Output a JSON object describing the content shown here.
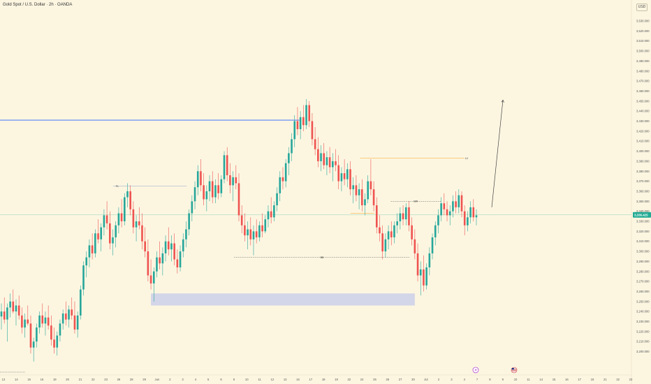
{
  "title": "Gold Spot / U.S. Dollar · 2h · OANDA",
  "currency": "USD",
  "chart_data": {
    "type": "candlestick",
    "symbol": "Gold Spot / U.S. Dollar",
    "interval": "2h",
    "source": "OANDA",
    "y_axis_ticks": [
      3530,
      3520,
      3510,
      3500,
      3490,
      3480,
      3470,
      3460,
      3450,
      3440,
      3430,
      3420,
      3410,
      3400,
      3390,
      3380,
      3370,
      3360,
      3350,
      3340,
      3330,
      3320,
      3310,
      3300,
      3290,
      3280,
      3270,
      3260,
      3250,
      3240,
      3230,
      3220,
      3210,
      3200
    ],
    "y_axis_ticks_display": [
      "3,530.000",
      "3,520.000",
      "3,510.000",
      "3,500.000",
      "3,490.000",
      "3,480.000",
      "3,470.000",
      "3,460.000",
      "3,450.000",
      "3,440.000",
      "3,430.000",
      "3,420.000",
      "3,410.000",
      "3,400.000",
      "3,390.000",
      "3,380.000",
      "3,370.000",
      "3,360.000",
      "3,350.000",
      "3,340.000",
      "3,330.000",
      "3,320.000",
      "3,310.000",
      "3,300.000",
      "3,290.000",
      "3,280.000",
      "3,270.000",
      "3,260.000",
      "3,250.000",
      "3,240.000",
      "3,230.000",
      "3,220.000",
      "3,210.000",
      "3,200.000"
    ],
    "current_price": 3336.425,
    "current_price_display": "3,336.425",
    "x_axis_labels": [
      "12",
      "14",
      "15",
      "16",
      "19",
      "20",
      "21",
      "22",
      "23",
      "26",
      "28",
      "29",
      "Jun",
      "2",
      "3",
      "4",
      "5",
      "6",
      "9",
      "10",
      "11",
      "12",
      "13",
      "16",
      "17",
      "18",
      "19",
      "22",
      "24",
      "25",
      "26",
      "27",
      "30",
      "Jul",
      "2",
      "3",
      "4",
      "7",
      "8",
      "9",
      "10",
      "11",
      "14",
      "15",
      "16",
      "17",
      "18",
      "21",
      "22",
      "23"
    ],
    "ohlc": [
      {
        "o": 3235,
        "h": 3248,
        "l": 3222,
        "c": 3240
      },
      {
        "o": 3240,
        "h": 3254,
        "l": 3228,
        "c": 3232
      },
      {
        "o": 3232,
        "h": 3248,
        "l": 3210,
        "c": 3244
      },
      {
        "o": 3244,
        "h": 3258,
        "l": 3234,
        "c": 3250
      },
      {
        "o": 3250,
        "h": 3262,
        "l": 3238,
        "c": 3240
      },
      {
        "o": 3240,
        "h": 3252,
        "l": 3226,
        "c": 3246
      },
      {
        "o": 3246,
        "h": 3256,
        "l": 3232,
        "c": 3236
      },
      {
        "o": 3236,
        "h": 3244,
        "l": 3218,
        "c": 3224
      },
      {
        "o": 3224,
        "h": 3238,
        "l": 3214,
        "c": 3232
      },
      {
        "o": 3232,
        "h": 3246,
        "l": 3226,
        "c": 3228
      },
      {
        "o": 3228,
        "h": 3236,
        "l": 3198,
        "c": 3204
      },
      {
        "o": 3204,
        "h": 3214,
        "l": 3190,
        "c": 3210
      },
      {
        "o": 3210,
        "h": 3228,
        "l": 3204,
        "c": 3224
      },
      {
        "o": 3224,
        "h": 3240,
        "l": 3218,
        "c": 3236
      },
      {
        "o": 3236,
        "h": 3248,
        "l": 3224,
        "c": 3228
      },
      {
        "o": 3228,
        "h": 3240,
        "l": 3216,
        "c": 3234
      },
      {
        "o": 3234,
        "h": 3246,
        "l": 3222,
        "c": 3226
      },
      {
        "o": 3226,
        "h": 3236,
        "l": 3206,
        "c": 3212
      },
      {
        "o": 3212,
        "h": 3224,
        "l": 3198,
        "c": 3204
      },
      {
        "o": 3204,
        "h": 3220,
        "l": 3196,
        "c": 3216
      },
      {
        "o": 3216,
        "h": 3232,
        "l": 3210,
        "c": 3228
      },
      {
        "o": 3228,
        "h": 3242,
        "l": 3222,
        "c": 3238
      },
      {
        "o": 3238,
        "h": 3250,
        "l": 3226,
        "c": 3232
      },
      {
        "o": 3232,
        "h": 3246,
        "l": 3224,
        "c": 3242
      },
      {
        "o": 3242,
        "h": 3254,
        "l": 3232,
        "c": 3236
      },
      {
        "o": 3236,
        "h": 3250,
        "l": 3218,
        "c": 3222
      },
      {
        "o": 3222,
        "h": 3240,
        "l": 3214,
        "c": 3236
      },
      {
        "o": 3236,
        "h": 3266,
        "l": 3232,
        "c": 3262
      },
      {
        "o": 3262,
        "h": 3290,
        "l": 3256,
        "c": 3286
      },
      {
        "o": 3286,
        "h": 3300,
        "l": 3274,
        "c": 3294
      },
      {
        "o": 3294,
        "h": 3312,
        "l": 3284,
        "c": 3306
      },
      {
        "o": 3306,
        "h": 3318,
        "l": 3292,
        "c": 3298
      },
      {
        "o": 3298,
        "h": 3322,
        "l": 3294,
        "c": 3318
      },
      {
        "o": 3318,
        "h": 3332,
        "l": 3308,
        "c": 3312
      },
      {
        "o": 3312,
        "h": 3328,
        "l": 3300,
        "c": 3324
      },
      {
        "o": 3324,
        "h": 3342,
        "l": 3316,
        "c": 3336
      },
      {
        "o": 3336,
        "h": 3350,
        "l": 3322,
        "c": 3328
      },
      {
        "o": 3328,
        "h": 3340,
        "l": 3302,
        "c": 3308
      },
      {
        "o": 3308,
        "h": 3322,
        "l": 3296,
        "c": 3314
      },
      {
        "o": 3314,
        "h": 3330,
        "l": 3304,
        "c": 3326
      },
      {
        "o": 3326,
        "h": 3344,
        "l": 3318,
        "c": 3338
      },
      {
        "o": 3338,
        "h": 3352,
        "l": 3324,
        "c": 3330
      },
      {
        "o": 3330,
        "h": 3358,
        "l": 3326,
        "c": 3354
      },
      {
        "o": 3354,
        "h": 3368,
        "l": 3344,
        "c": 3360
      },
      {
        "o": 3360,
        "h": 3366,
        "l": 3336,
        "c": 3342
      },
      {
        "o": 3342,
        "h": 3350,
        "l": 3318,
        "c": 3324
      },
      {
        "o": 3324,
        "h": 3336,
        "l": 3310,
        "c": 3330
      },
      {
        "o": 3330,
        "h": 3344,
        "l": 3322,
        "c": 3326
      },
      {
        "o": 3326,
        "h": 3338,
        "l": 3302,
        "c": 3310
      },
      {
        "o": 3310,
        "h": 3324,
        "l": 3294,
        "c": 3300
      },
      {
        "o": 3300,
        "h": 3312,
        "l": 3270,
        "c": 3276
      },
      {
        "o": 3276,
        "h": 3292,
        "l": 3262,
        "c": 3268
      },
      {
        "o": 3268,
        "h": 3284,
        "l": 3250,
        "c": 3280
      },
      {
        "o": 3280,
        "h": 3300,
        "l": 3274,
        "c": 3294
      },
      {
        "o": 3294,
        "h": 3310,
        "l": 3282,
        "c": 3288
      },
      {
        "o": 3288,
        "h": 3304,
        "l": 3276,
        "c": 3298
      },
      {
        "o": 3298,
        "h": 3316,
        "l": 3290,
        "c": 3310
      },
      {
        "o": 3310,
        "h": 3324,
        "l": 3296,
        "c": 3302
      },
      {
        "o": 3302,
        "h": 3316,
        "l": 3290,
        "c": 3308
      },
      {
        "o": 3308,
        "h": 3318,
        "l": 3286,
        "c": 3292
      },
      {
        "o": 3292,
        "h": 3302,
        "l": 3278,
        "c": 3284
      },
      {
        "o": 3284,
        "h": 3306,
        "l": 3280,
        "c": 3300
      },
      {
        "o": 3300,
        "h": 3318,
        "l": 3294,
        "c": 3312
      },
      {
        "o": 3312,
        "h": 3330,
        "l": 3304,
        "c": 3322
      },
      {
        "o": 3322,
        "h": 3342,
        "l": 3316,
        "c": 3338
      },
      {
        "o": 3338,
        "h": 3356,
        "l": 3330,
        "c": 3350
      },
      {
        "o": 3350,
        "h": 3370,
        "l": 3342,
        "c": 3364
      },
      {
        "o": 3364,
        "h": 3386,
        "l": 3356,
        "c": 3380
      },
      {
        "o": 3380,
        "h": 3392,
        "l": 3360,
        "c": 3366
      },
      {
        "o": 3366,
        "h": 3378,
        "l": 3346,
        "c": 3352
      },
      {
        "o": 3352,
        "h": 3366,
        "l": 3340,
        "c": 3360
      },
      {
        "o": 3360,
        "h": 3376,
        "l": 3350,
        "c": 3370
      },
      {
        "o": 3370,
        "h": 3380,
        "l": 3348,
        "c": 3354
      },
      {
        "o": 3354,
        "h": 3372,
        "l": 3348,
        "c": 3366
      },
      {
        "o": 3366,
        "h": 3378,
        "l": 3352,
        "c": 3358
      },
      {
        "o": 3358,
        "h": 3376,
        "l": 3354,
        "c": 3372
      },
      {
        "o": 3372,
        "h": 3400,
        "l": 3368,
        "c": 3396
      },
      {
        "o": 3396,
        "h": 3404,
        "l": 3370,
        "c": 3376
      },
      {
        "o": 3376,
        "h": 3388,
        "l": 3358,
        "c": 3366
      },
      {
        "o": 3366,
        "h": 3380,
        "l": 3350,
        "c": 3374
      },
      {
        "o": 3374,
        "h": 3386,
        "l": 3362,
        "c": 3368
      },
      {
        "o": 3368,
        "h": 3378,
        "l": 3330,
        "c": 3336
      },
      {
        "o": 3336,
        "h": 3346,
        "l": 3318,
        "c": 3326
      },
      {
        "o": 3326,
        "h": 3338,
        "l": 3310,
        "c": 3316
      },
      {
        "o": 3316,
        "h": 3330,
        "l": 3302,
        "c": 3322
      },
      {
        "o": 3322,
        "h": 3334,
        "l": 3306,
        "c": 3312
      },
      {
        "o": 3312,
        "h": 3326,
        "l": 3296,
        "c": 3320
      },
      {
        "o": 3320,
        "h": 3332,
        "l": 3308,
        "c": 3314
      },
      {
        "o": 3314,
        "h": 3330,
        "l": 3310,
        "c": 3326
      },
      {
        "o": 3326,
        "h": 3338,
        "l": 3314,
        "c": 3320
      },
      {
        "o": 3320,
        "h": 3336,
        "l": 3318,
        "c": 3332
      },
      {
        "o": 3332,
        "h": 3346,
        "l": 3324,
        "c": 3340
      },
      {
        "o": 3340,
        "h": 3354,
        "l": 3328,
        "c": 3334
      },
      {
        "o": 3334,
        "h": 3350,
        "l": 3330,
        "c": 3346
      },
      {
        "o": 3346,
        "h": 3364,
        "l": 3340,
        "c": 3358
      },
      {
        "o": 3358,
        "h": 3380,
        "l": 3350,
        "c": 3374
      },
      {
        "o": 3374,
        "h": 3384,
        "l": 3362,
        "c": 3370
      },
      {
        "o": 3370,
        "h": 3392,
        "l": 3364,
        "c": 3388
      },
      {
        "o": 3388,
        "h": 3404,
        "l": 3376,
        "c": 3398
      },
      {
        "o": 3398,
        "h": 3418,
        "l": 3390,
        "c": 3412
      },
      {
        "o": 3412,
        "h": 3436,
        "l": 3404,
        "c": 3430
      },
      {
        "o": 3430,
        "h": 3444,
        "l": 3416,
        "c": 3422
      },
      {
        "o": 3422,
        "h": 3440,
        "l": 3412,
        "c": 3434
      },
      {
        "o": 3434,
        "h": 3446,
        "l": 3420,
        "c": 3426
      },
      {
        "o": 3426,
        "h": 3452,
        "l": 3422,
        "c": 3446
      },
      {
        "o": 3446,
        "h": 3450,
        "l": 3424,
        "c": 3430
      },
      {
        "o": 3430,
        "h": 3438,
        "l": 3406,
        "c": 3412
      },
      {
        "o": 3412,
        "h": 3424,
        "l": 3396,
        "c": 3402
      },
      {
        "o": 3402,
        "h": 3414,
        "l": 3384,
        "c": 3390
      },
      {
        "o": 3390,
        "h": 3406,
        "l": 3380,
        "c": 3398
      },
      {
        "o": 3398,
        "h": 3408,
        "l": 3382,
        "c": 3386
      },
      {
        "o": 3386,
        "h": 3400,
        "l": 3376,
        "c": 3394
      },
      {
        "o": 3394,
        "h": 3404,
        "l": 3378,
        "c": 3384
      },
      {
        "o": 3384,
        "h": 3398,
        "l": 3370,
        "c": 3390
      },
      {
        "o": 3390,
        "h": 3402,
        "l": 3380,
        "c": 3386
      },
      {
        "o": 3386,
        "h": 3396,
        "l": 3362,
        "c": 3370
      },
      {
        "o": 3370,
        "h": 3384,
        "l": 3360,
        "c": 3378
      },
      {
        "o": 3378,
        "h": 3392,
        "l": 3366,
        "c": 3372
      },
      {
        "o": 3372,
        "h": 3388,
        "l": 3364,
        "c": 3382
      },
      {
        "o": 3382,
        "h": 3390,
        "l": 3356,
        "c": 3362
      },
      {
        "o": 3362,
        "h": 3374,
        "l": 3348,
        "c": 3366
      },
      {
        "o": 3366,
        "h": 3376,
        "l": 3350,
        "c": 3356
      },
      {
        "o": 3356,
        "h": 3368,
        "l": 3342,
        "c": 3362
      },
      {
        "o": 3362,
        "h": 3372,
        "l": 3340,
        "c": 3346
      },
      {
        "o": 3346,
        "h": 3358,
        "l": 3336,
        "c": 3352
      },
      {
        "o": 3352,
        "h": 3376,
        "l": 3348,
        "c": 3370
      },
      {
        "o": 3370,
        "h": 3392,
        "l": 3356,
        "c": 3362
      },
      {
        "o": 3362,
        "h": 3370,
        "l": 3340,
        "c": 3346
      },
      {
        "o": 3346,
        "h": 3354,
        "l": 3318,
        "c": 3324
      },
      {
        "o": 3324,
        "h": 3336,
        "l": 3310,
        "c": 3318
      },
      {
        "o": 3318,
        "h": 3326,
        "l": 3292,
        "c": 3300
      },
      {
        "o": 3300,
        "h": 3318,
        "l": 3294,
        "c": 3312
      },
      {
        "o": 3312,
        "h": 3326,
        "l": 3302,
        "c": 3320
      },
      {
        "o": 3320,
        "h": 3330,
        "l": 3306,
        "c": 3314
      },
      {
        "o": 3314,
        "h": 3330,
        "l": 3308,
        "c": 3326
      },
      {
        "o": 3326,
        "h": 3338,
        "l": 3318,
        "c": 3330
      },
      {
        "o": 3330,
        "h": 3344,
        "l": 3322,
        "c": 3338
      },
      {
        "o": 3338,
        "h": 3346,
        "l": 3326,
        "c": 3332
      },
      {
        "o": 3332,
        "h": 3348,
        "l": 3326,
        "c": 3344
      },
      {
        "o": 3344,
        "h": 3350,
        "l": 3320,
        "c": 3326
      },
      {
        "o": 3326,
        "h": 3334,
        "l": 3306,
        "c": 3312
      },
      {
        "o": 3312,
        "h": 3322,
        "l": 3292,
        "c": 3298
      },
      {
        "o": 3298,
        "h": 3308,
        "l": 3270,
        "c": 3276
      },
      {
        "o": 3276,
        "h": 3290,
        "l": 3256,
        "c": 3282
      },
      {
        "o": 3282,
        "h": 3296,
        "l": 3260,
        "c": 3266
      },
      {
        "o": 3266,
        "h": 3288,
        "l": 3262,
        "c": 3284
      },
      {
        "o": 3284,
        "h": 3304,
        "l": 3276,
        "c": 3298
      },
      {
        "o": 3298,
        "h": 3318,
        "l": 3292,
        "c": 3314
      },
      {
        "o": 3314,
        "h": 3330,
        "l": 3306,
        "c": 3326
      },
      {
        "o": 3326,
        "h": 3342,
        "l": 3318,
        "c": 3336
      },
      {
        "o": 3336,
        "h": 3354,
        "l": 3330,
        "c": 3348
      },
      {
        "o": 3348,
        "h": 3358,
        "l": 3336,
        "c": 3342
      },
      {
        "o": 3342,
        "h": 3350,
        "l": 3330,
        "c": 3336
      },
      {
        "o": 3336,
        "h": 3346,
        "l": 3326,
        "c": 3340
      },
      {
        "o": 3340,
        "h": 3356,
        "l": 3334,
        "c": 3350
      },
      {
        "o": 3350,
        "h": 3360,
        "l": 3338,
        "c": 3344
      },
      {
        "o": 3344,
        "h": 3362,
        "l": 3338,
        "c": 3356
      },
      {
        "o": 3356,
        "h": 3360,
        "l": 3334,
        "c": 3340
      },
      {
        "o": 3340,
        "h": 3346,
        "l": 3316,
        "c": 3326
      },
      {
        "o": 3326,
        "h": 3340,
        "l": 3320,
        "c": 3334
      },
      {
        "o": 3334,
        "h": 3350,
        "l": 3328,
        "c": 3344
      },
      {
        "o": 3344,
        "h": 3352,
        "l": 3330,
        "c": 3334
      },
      {
        "o": 3334,
        "h": 3342,
        "l": 3326,
        "c": 3336
      }
    ],
    "annotations": [
      {
        "text": "FL",
        "price": 3365
      },
      {
        "text": "LV",
        "price": 3393
      },
      {
        "text": "BW",
        "price": 3350
      },
      {
        "text": "BB",
        "price": 3294
      }
    ],
    "horizontal_level": 3431,
    "demand_zone": {
      "top": 3258,
      "bottom": 3246
    },
    "projection_target": 3451,
    "bull_color": "#26a69a",
    "bear_color": "#ef5350",
    "level_color": "#2962ff",
    "annotation_color": "#f7a21b",
    "zone_color": "#c5cae9",
    "price_tag_color": "#22ab94",
    "grid": false
  }
}
